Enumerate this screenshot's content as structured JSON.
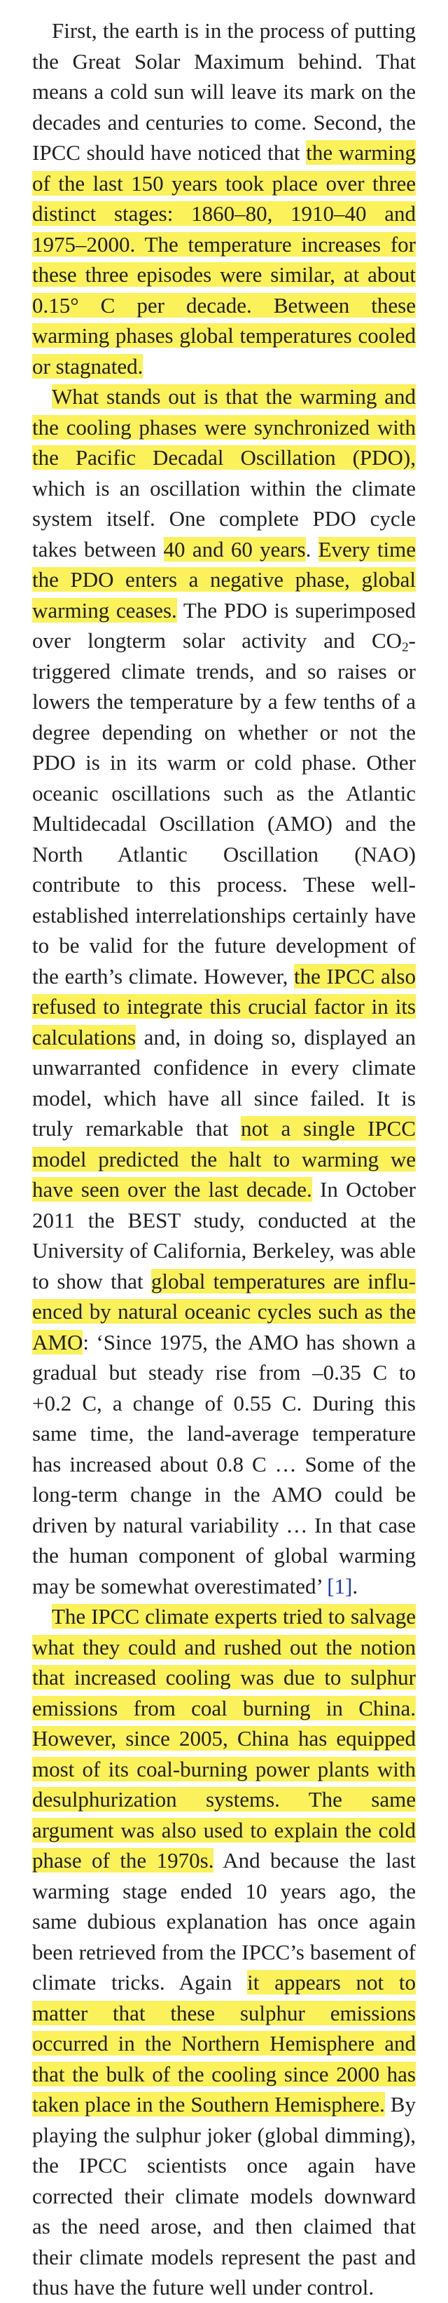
{
  "paragraphs": [
    {
      "segments": [
        {
          "t": "First, the earth is in the process of putting the Great Solar Maximum behind. That means a cold sun will leave its mark on the decades and centuries to come. Second, the IPCC should have noticed that ",
          "hl": false
        },
        {
          "t": "the warming of the last 150 years took place over three distinct stages: 1860–80, 1910–40 and 1975–2000. The temperature increases for these three episodes were similar, at about 0.15° C per decade. Between these warming phases global temperatures cooled or stagnated.",
          "hl": true
        }
      ]
    },
    {
      "segments": [
        {
          "t": "What stands out is that the warming and the cooling phases were synchronized with the Pacific Decadal Oscillation (PDO),",
          "hl": true
        },
        {
          "t": " which is an oscillation within the climate system itself. One complete PDO cycle takes between ",
          "hl": false
        },
        {
          "t": "40 and 60 years",
          "hl": true
        },
        {
          "t": ". ",
          "hl": false
        },
        {
          "t": "Every time the PDO enters a negative phase, global warm­ing ceases.",
          "hl": true
        },
        {
          "t": " The PDO is superimposed over longterm solar activity and CO",
          "hl": false
        },
        {
          "t": "2",
          "hl": false,
          "sub": true
        },
        {
          "t": "-triggered climate trends, and so raises or lowers the temperature by a few tenths of a degree de­pending on whether or not the PDO is in its warm or cold phase. Other oceanic oscilla­tions such as the Atlantic Multidecadal Os­cillation (AMO) and the North Atlantic Os­cillation (NAO) contribute to this process. These well-established interrelationships cer­tainly have to be valid for the future devel­opment of the earth’s climate. However, ",
          "hl": false
        },
        {
          "t": "the IPCC also refused to integrate this crucial factor in its calculations",
          "hl": true
        },
        {
          "t": " and, in doing so, displayed an unwarranted confidence in every climate model, which have all since failed. It is truly remarkable that ",
          "hl": false
        },
        {
          "t": "not a single IPCC model predicted the halt to warming we have seen over the last decade.",
          "hl": true
        },
        {
          "t": " In Octo­ber 2011 the BEST study, conducted at the University of California, Berkeley, was able to show that ",
          "hl": false
        },
        {
          "t": "global temperatures are influ­enced by natural oceanic cycles such as the AMO",
          "hl": true
        },
        {
          "t": ": ‘Since 1975, the AMO has shown a gradual but steady rise from –0.35 C to +0.2 C, a change of 0.55 C. During this same time, the land-average temperature has in­creased about 0.8 C … Some of the long-term change in the AMO could be driven by natural variability … In that case the human component of global warming may be some­what overestimated’ ",
          "hl": false
        },
        {
          "t": "[1]",
          "hl": false,
          "ref": true
        },
        {
          "t": ".",
          "hl": false
        }
      ]
    },
    {
      "segments": [
        {
          "t": "The IPCC climate experts tried to salvage what they could and rushed out the notion that increased cooling was due to sulphur emissions from coal burning in China. How­ever, since 2005, China has equipped most of its coal-burning power plants with desul­phurization systems. The same argument was also used to explain the cold phase of the 1970s.",
          "hl": true
        },
        {
          "t": " And because the last warming stage ended 10 years ago, the same dubious explanation has once again been retrieved from the IPCC’s basement of climate tricks. Again ",
          "hl": false
        },
        {
          "t": "it appears not to matter that these sul­phur emissions occurred in the Northern Hemisphere and that the bulk of the cooling since 2000 has taken place in the Southern Hemisphere.",
          "hl": true
        },
        {
          "t": " By playing the sulphur joker (global dimming), the IPCC scientists once again have corrected their climate models downward as the need arose, and then claimed that their climate models represent the past and thus have the future well under control.",
          "hl": false
        }
      ]
    }
  ]
}
